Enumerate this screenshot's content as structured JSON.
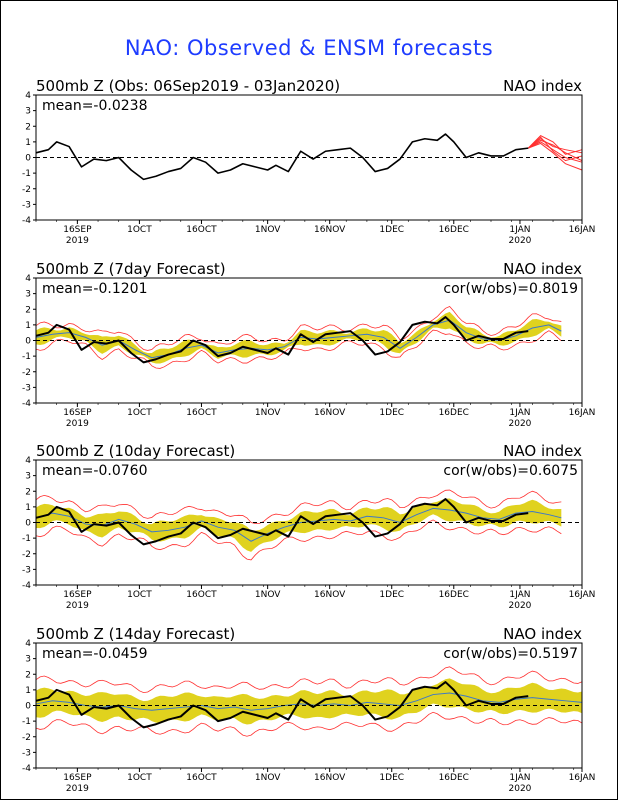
{
  "title": "NAO: Observed & ENSM forecasts",
  "colors": {
    "title": "#1e3cff",
    "observed": "#000000",
    "ensemble": "#ff3030",
    "spread": "#e0d21e",
    "ens_mean": "#3c78c8"
  },
  "chart_data": [
    {
      "type": "line",
      "title": "500mb Z (Obs: 06Sep2019 - 03Jan2020)",
      "right_label": "NAO index",
      "mean_label": "mean=-0.0238",
      "cor_label": "",
      "ylim": [
        -4,
        4
      ],
      "yticks": [
        "4",
        "3",
        "2",
        "1",
        "0",
        "-1",
        "-2",
        "-3",
        "-4"
      ],
      "xticks": [
        {
          "label": "16SEP",
          "sub": "2019",
          "day": 10
        },
        {
          "label": "1OCT",
          "sub": "",
          "day": 25
        },
        {
          "label": "16OCT",
          "sub": "",
          "day": 40
        },
        {
          "label": "1NOV",
          "sub": "",
          "day": 56
        },
        {
          "label": "16NOV",
          "sub": "",
          "day": 71
        },
        {
          "label": "1DEC",
          "sub": "",
          "day": 86
        },
        {
          "label": "16DEC",
          "sub": "",
          "day": 101
        },
        {
          "label": "1JAN",
          "sub": "2020",
          "day": 117
        },
        {
          "label": "16JAN",
          "sub": "",
          "day": 132
        }
      ],
      "x_range_days": [
        0,
        132
      ],
      "series": [
        {
          "role": "observed",
          "days": [
            0,
            3,
            5,
            8,
            11,
            14,
            17,
            20,
            23,
            26,
            29,
            32,
            35,
            38,
            41,
            44,
            47,
            50,
            53,
            56,
            58,
            61,
            64,
            67,
            70,
            73,
            76,
            79,
            82,
            85,
            88,
            91,
            94,
            97,
            99,
            101,
            104,
            107,
            110,
            113,
            116,
            119
          ],
          "values": [
            0.3,
            0.5,
            1.0,
            0.7,
            -0.6,
            -0.1,
            -0.2,
            0.0,
            -0.8,
            -1.4,
            -1.2,
            -0.9,
            -0.7,
            0.0,
            -0.3,
            -1.0,
            -0.8,
            -0.4,
            -0.6,
            -0.8,
            -0.5,
            -0.9,
            0.4,
            -0.1,
            0.4,
            0.5,
            0.6,
            0.0,
            -0.9,
            -0.7,
            -0.1,
            1.0,
            1.2,
            1.1,
            1.5,
            1.0,
            0.0,
            0.3,
            0.1,
            0.1,
            0.5,
            0.6
          ]
        },
        {
          "role": "ensemble",
          "days": [
            119,
            122,
            125,
            128,
            132
          ],
          "members": [
            [
              0.6,
              1.2,
              0.7,
              0.5,
              0.3
            ],
            [
              0.6,
              1.0,
              0.5,
              0.0,
              -0.3
            ],
            [
              0.6,
              1.4,
              1.0,
              0.2,
              0.5
            ],
            [
              0.6,
              0.9,
              0.3,
              -0.4,
              -0.8
            ],
            [
              0.6,
              1.1,
              0.8,
              0.3,
              -0.2
            ],
            [
              0.6,
              1.3,
              0.4,
              -0.2,
              0.1
            ]
          ]
        }
      ]
    },
    {
      "type": "line",
      "title": "500mb Z (7day Forecast)",
      "right_label": "NAO index",
      "mean_label": "mean=-0.1201",
      "cor_label": "cor(w/obs)=0.8019",
      "ylim": [
        -4,
        4
      ],
      "yticks": [
        "4",
        "3",
        "2",
        "1",
        "0",
        "-1",
        "-2",
        "-3",
        "-4"
      ],
      "xticks": [
        {
          "label": "16SEP",
          "sub": "2019",
          "day": 10
        },
        {
          "label": "1OCT",
          "sub": "",
          "day": 25
        },
        {
          "label": "16OCT",
          "sub": "",
          "day": 40
        },
        {
          "label": "1NOV",
          "sub": "",
          "day": 56
        },
        {
          "label": "16NOV",
          "sub": "",
          "day": 71
        },
        {
          "label": "1DEC",
          "sub": "",
          "day": 86
        },
        {
          "label": "16DEC",
          "sub": "",
          "day": 101
        },
        {
          "label": "1JAN",
          "sub": "2020",
          "day": 117
        },
        {
          "label": "16JAN",
          "sub": "",
          "day": 132
        }
      ],
      "x_range_days": [
        0,
        132
      ],
      "series": [
        {
          "role": "observed",
          "days": [
            0,
            3,
            5,
            8,
            11,
            14,
            17,
            20,
            23,
            26,
            29,
            32,
            35,
            38,
            41,
            44,
            47,
            50,
            53,
            56,
            58,
            61,
            64,
            67,
            70,
            73,
            76,
            79,
            82,
            85,
            88,
            91,
            94,
            97,
            99,
            101,
            104,
            107,
            110,
            113,
            116,
            119
          ],
          "values": [
            0.3,
            0.5,
            1.0,
            0.7,
            -0.6,
            -0.1,
            -0.2,
            0.0,
            -0.8,
            -1.4,
            -1.2,
            -0.9,
            -0.7,
            0.0,
            -0.3,
            -1.0,
            -0.8,
            -0.4,
            -0.6,
            -0.8,
            -0.5,
            -0.9,
            0.4,
            -0.1,
            0.4,
            0.5,
            0.6,
            0.0,
            -0.9,
            -0.7,
            -0.1,
            1.0,
            1.2,
            1.1,
            1.5,
            1.0,
            0.0,
            0.3,
            0.1,
            0.1,
            0.5,
            0.6
          ]
        },
        {
          "role": "ens_mean",
          "days": [
            0,
            4,
            8,
            12,
            16,
            20,
            24,
            28,
            32,
            36,
            40,
            44,
            48,
            52,
            56,
            60,
            64,
            68,
            72,
            76,
            80,
            84,
            88,
            92,
            96,
            100,
            104,
            108,
            112,
            116,
            120,
            124,
            127
          ],
          "values": [
            0.2,
            0.4,
            0.5,
            0.2,
            -0.3,
            0.0,
            -0.6,
            -1.1,
            -0.9,
            -0.5,
            -0.3,
            -0.8,
            -0.6,
            -0.5,
            -0.6,
            -0.4,
            0.2,
            0.1,
            0.2,
            0.3,
            0.4,
            0.2,
            -0.5,
            0.2,
            1.0,
            1.3,
            0.5,
            0.1,
            0.0,
            0.3,
            0.8,
            1.0,
            0.6
          ]
        },
        {
          "role": "spread",
          "half_width": 0.35
        },
        {
          "role": "ensemble_envelope",
          "half_width": 0.6
        }
      ]
    },
    {
      "type": "line",
      "title": "500mb Z (10day Forecast)",
      "right_label": "NAO index",
      "mean_label": "mean=-0.0760",
      "cor_label": "cor(w/obs)=0.6075",
      "ylim": [
        -4,
        4
      ],
      "yticks": [
        "4",
        "3",
        "2",
        "1",
        "0",
        "-1",
        "-2",
        "-3",
        "-4"
      ],
      "xticks": [
        {
          "label": "16SEP",
          "sub": "2019",
          "day": 10
        },
        {
          "label": "1OCT",
          "sub": "",
          "day": 25
        },
        {
          "label": "16OCT",
          "sub": "",
          "day": 40
        },
        {
          "label": "1NOV",
          "sub": "",
          "day": 56
        },
        {
          "label": "16NOV",
          "sub": "",
          "day": 71
        },
        {
          "label": "1DEC",
          "sub": "",
          "day": 86
        },
        {
          "label": "16DEC",
          "sub": "",
          "day": 101
        },
        {
          "label": "1JAN",
          "sub": "2020",
          "day": 117
        },
        {
          "label": "16JAN",
          "sub": "",
          "day": 132
        }
      ],
      "x_range_days": [
        0,
        132
      ],
      "series": [
        {
          "role": "observed",
          "days": [
            0,
            3,
            5,
            8,
            11,
            14,
            17,
            20,
            23,
            26,
            29,
            32,
            35,
            38,
            41,
            44,
            47,
            50,
            53,
            56,
            58,
            61,
            64,
            67,
            70,
            73,
            76,
            79,
            82,
            85,
            88,
            91,
            94,
            97,
            99,
            101,
            104,
            107,
            110,
            113,
            116,
            119
          ],
          "values": [
            0.3,
            0.5,
            1.0,
            0.7,
            -0.6,
            -0.1,
            -0.2,
            0.0,
            -0.8,
            -1.4,
            -1.2,
            -0.9,
            -0.7,
            0.0,
            -0.3,
            -1.0,
            -0.8,
            -0.4,
            -0.6,
            -0.8,
            -0.5,
            -0.9,
            0.4,
            -0.1,
            0.4,
            0.5,
            0.6,
            0.0,
            -0.9,
            -0.7,
            -0.1,
            1.0,
            1.2,
            1.1,
            1.5,
            1.0,
            0.0,
            0.3,
            0.1,
            0.1,
            0.5,
            0.6
          ]
        },
        {
          "role": "ens_mean",
          "days": [
            0,
            4,
            8,
            12,
            16,
            20,
            24,
            28,
            32,
            36,
            40,
            44,
            48,
            52,
            56,
            60,
            64,
            68,
            72,
            76,
            80,
            84,
            88,
            92,
            96,
            100,
            104,
            108,
            112,
            116,
            120,
            124,
            127
          ],
          "values": [
            0.3,
            0.6,
            0.4,
            -0.1,
            -0.2,
            0.2,
            -0.1,
            -0.6,
            -0.5,
            -0.3,
            0.1,
            -0.3,
            -0.5,
            -1.2,
            -0.7,
            -0.3,
            0.0,
            0.1,
            0.2,
            0.1,
            0.4,
            0.3,
            0.0,
            0.5,
            0.9,
            0.8,
            0.6,
            0.3,
            0.2,
            0.6,
            0.7,
            0.5,
            0.3
          ]
        },
        {
          "role": "spread",
          "half_width": 0.55
        },
        {
          "role": "ensemble_envelope",
          "half_width": 1.0
        }
      ]
    },
    {
      "type": "line",
      "title": "500mb Z (14day Forecast)",
      "right_label": "NAO index",
      "mean_label": "mean=-0.0459",
      "cor_label": "cor(w/obs)=0.5197",
      "ylim": [
        -4,
        4
      ],
      "yticks": [
        "4",
        "3",
        "2",
        "1",
        "0",
        "-1",
        "-2",
        "-3",
        "-4"
      ],
      "xticks": [
        {
          "label": "16SEP",
          "sub": "2019",
          "day": 10
        },
        {
          "label": "1OCT",
          "sub": "",
          "day": 25
        },
        {
          "label": "16OCT",
          "sub": "",
          "day": 40
        },
        {
          "label": "1NOV",
          "sub": "",
          "day": 56
        },
        {
          "label": "16NOV",
          "sub": "",
          "day": 71
        },
        {
          "label": "1DEC",
          "sub": "",
          "day": 86
        },
        {
          "label": "16DEC",
          "sub": "",
          "day": 101
        },
        {
          "label": "1JAN",
          "sub": "2020",
          "day": 117
        },
        {
          "label": "16JAN",
          "sub": "",
          "day": 132
        }
      ],
      "x_range_days": [
        0,
        132
      ],
      "series": [
        {
          "role": "observed",
          "days": [
            0,
            3,
            5,
            8,
            11,
            14,
            17,
            20,
            23,
            26,
            29,
            32,
            35,
            38,
            41,
            44,
            47,
            50,
            53,
            56,
            58,
            61,
            64,
            67,
            70,
            73,
            76,
            79,
            82,
            85,
            88,
            91,
            94,
            97,
            99,
            101,
            104,
            107,
            110,
            113,
            116,
            119
          ],
          "values": [
            0.3,
            0.5,
            1.0,
            0.7,
            -0.6,
            -0.1,
            -0.2,
            0.0,
            -0.8,
            -1.4,
            -1.2,
            -0.9,
            -0.7,
            0.0,
            -0.3,
            -1.0,
            -0.8,
            -0.4,
            -0.6,
            -0.8,
            -0.5,
            -0.9,
            0.4,
            -0.1,
            0.4,
            0.5,
            0.6,
            0.0,
            -0.9,
            -0.7,
            -0.1,
            1.0,
            1.2,
            1.1,
            1.5,
            1.0,
            0.0,
            0.3,
            0.1,
            0.1,
            0.5,
            0.6
          ]
        },
        {
          "role": "ens_mean",
          "days": [
            0,
            4,
            8,
            12,
            16,
            20,
            24,
            28,
            32,
            36,
            40,
            44,
            48,
            52,
            56,
            60,
            64,
            68,
            72,
            76,
            80,
            84,
            88,
            92,
            96,
            100,
            104,
            108,
            112,
            116,
            120,
            124,
            128,
            132
          ],
          "values": [
            0.1,
            0.3,
            0.2,
            0.0,
            -0.1,
            0.0,
            -0.2,
            -0.3,
            -0.2,
            -0.1,
            0.0,
            -0.2,
            -0.1,
            -0.3,
            -0.2,
            0.0,
            0.1,
            0.0,
            0.1,
            0.0,
            0.2,
            0.1,
            0.0,
            0.3,
            0.7,
            0.8,
            0.6,
            0.3,
            0.2,
            0.4,
            0.5,
            0.4,
            0.3,
            0.2
          ]
        },
        {
          "role": "spread",
          "half_width": 0.75
        },
        {
          "role": "ensemble_envelope",
          "half_width": 1.4
        }
      ]
    }
  ]
}
